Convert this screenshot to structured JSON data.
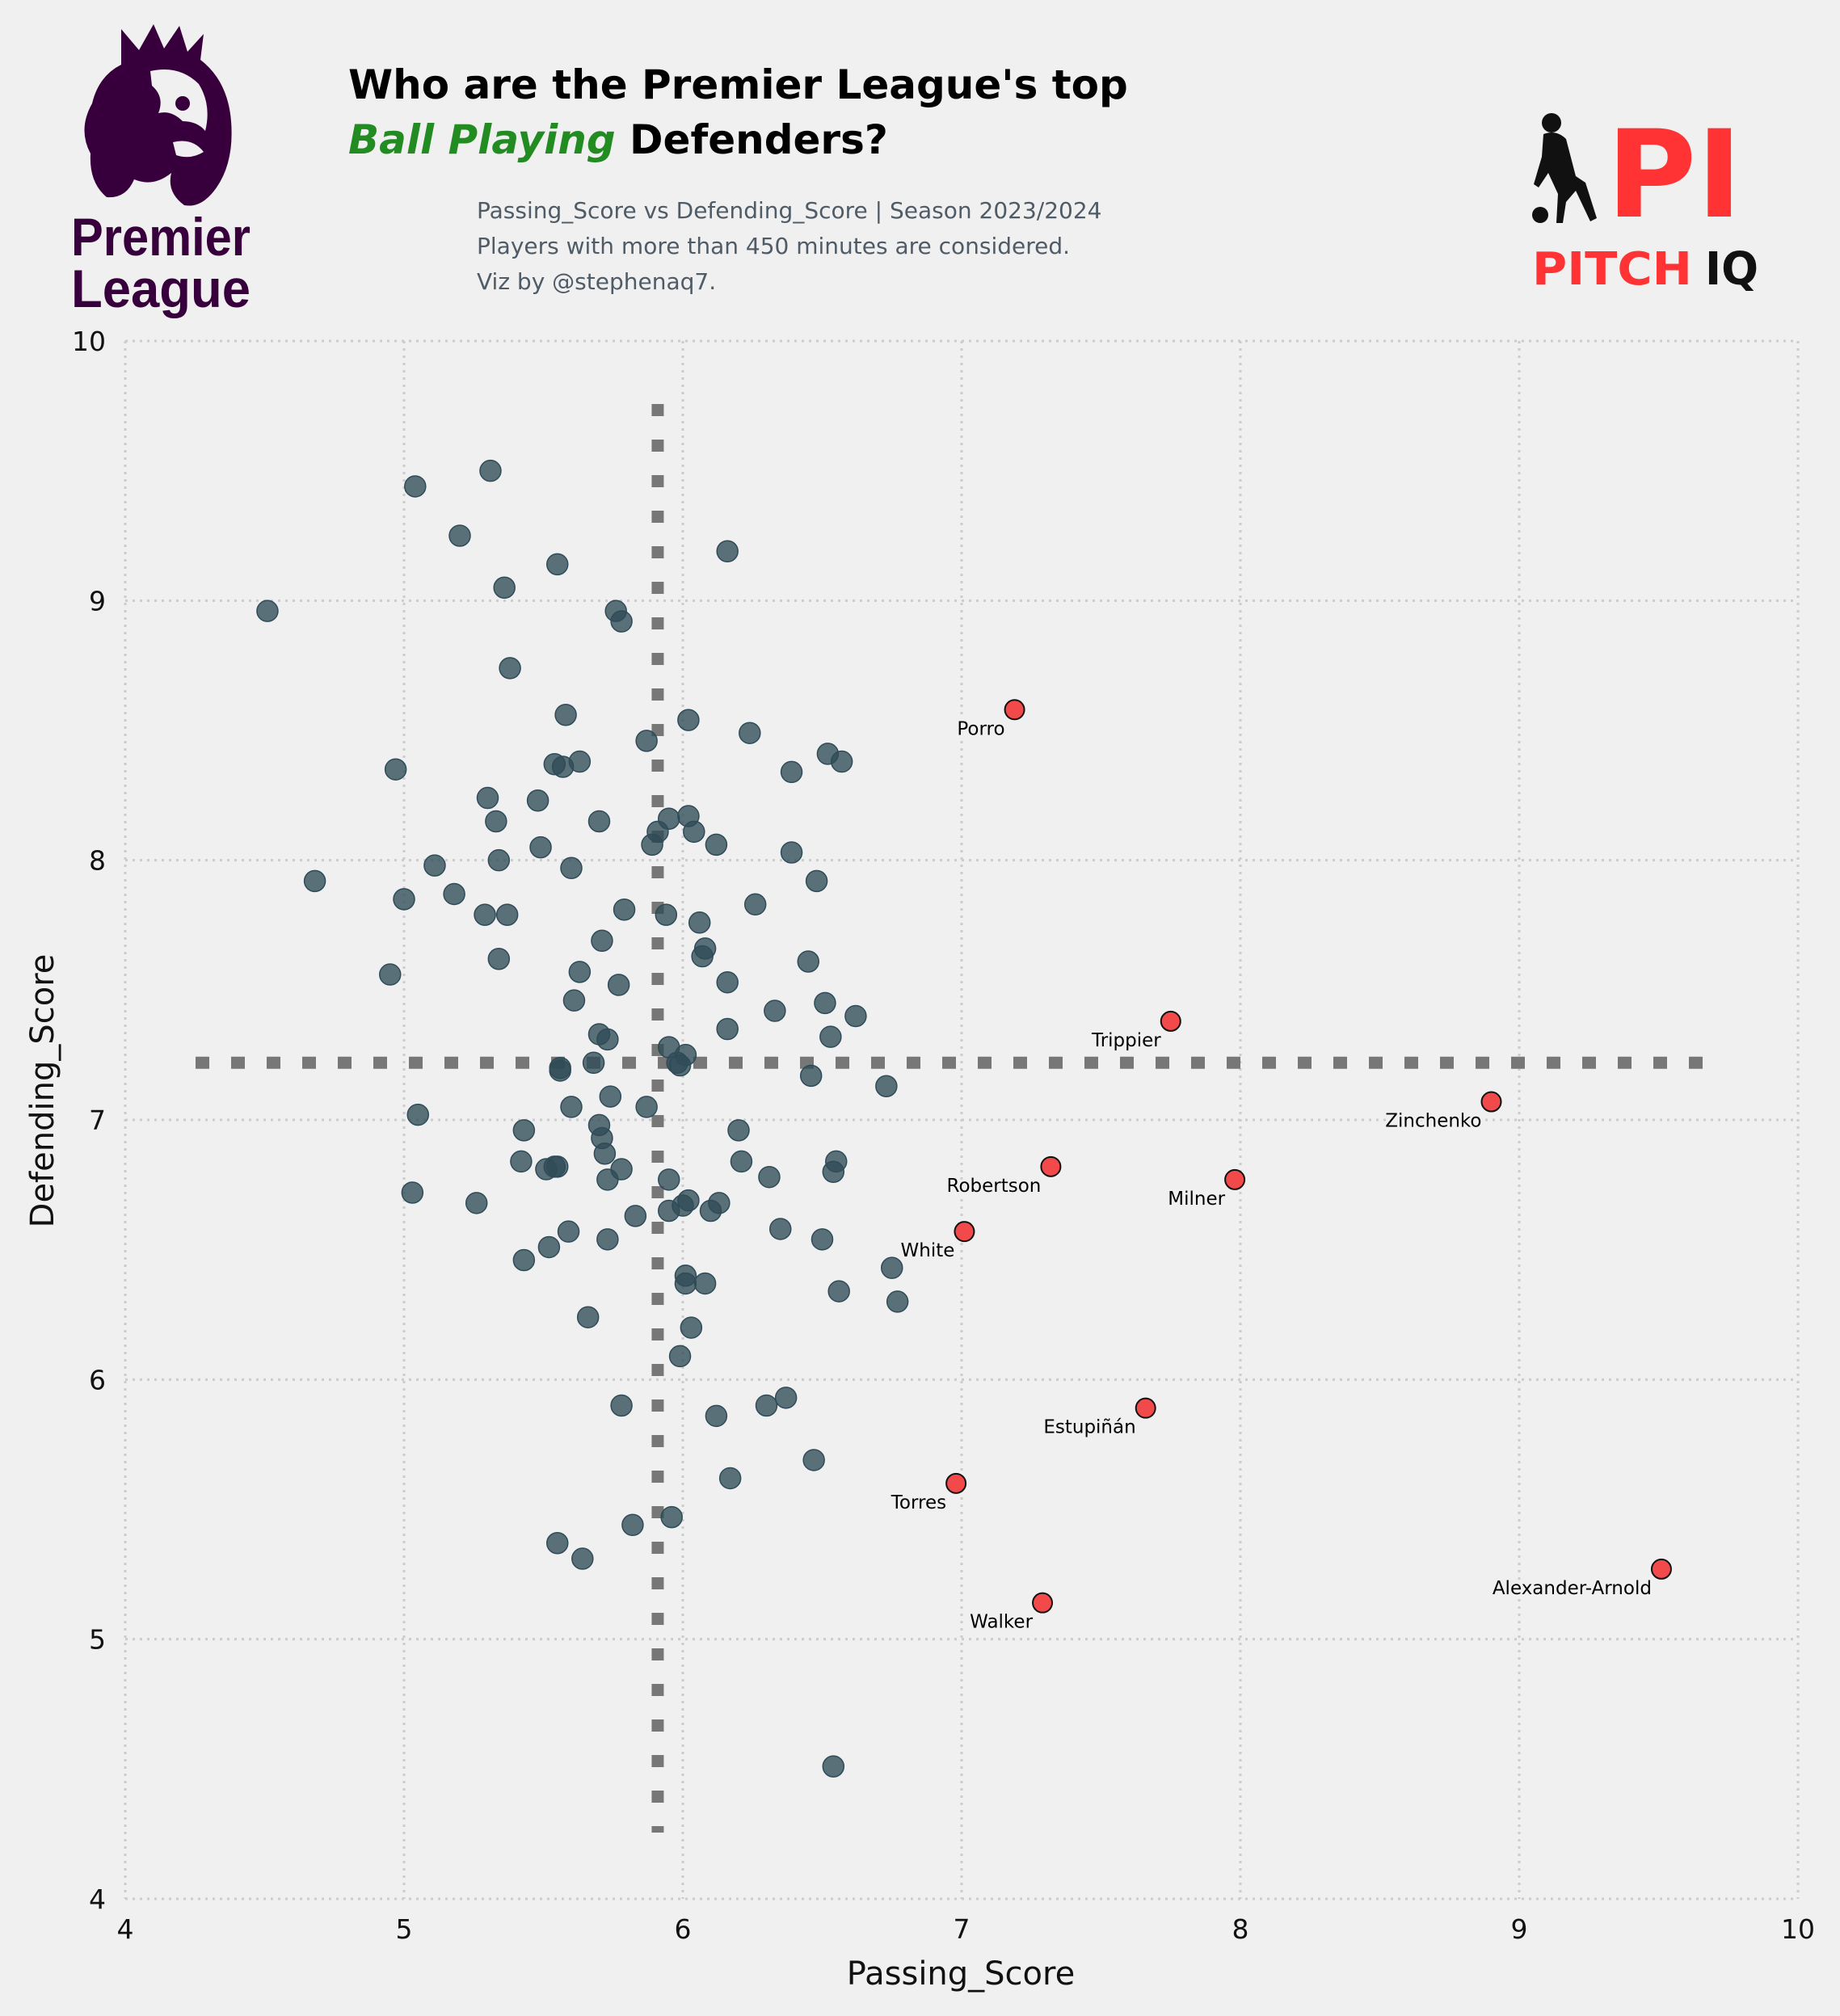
{
  "header": {
    "title_line1": "Who are the Premier League's top",
    "title_highlight": "Ball Playing",
    "title_rest": " Defenders?",
    "subtitle_lines": [
      "Passing_Score vs Defending_Score | Season 2023/2024",
      "Players with more than 450 minutes are considered.",
      "Viz by @stephenaq7."
    ]
  },
  "logos": {
    "left": {
      "line1": "Premier",
      "line2": "League",
      "color": "#37003c"
    },
    "right": {
      "mark": "PI",
      "word1": "PITCH",
      "word2": "IQ",
      "red": "#ff3333",
      "dark": "#111111"
    }
  },
  "colors": {
    "background": "#f0f0f0",
    "point": "#2f4b57",
    "highlight": "#f24a4a",
    "highlight_title": "#228b22",
    "grid": "#cccccc",
    "median_line": "#777777"
  },
  "chart_data": {
    "type": "scatter",
    "xlabel": "Passing_Score",
    "ylabel": "Defending_Score",
    "xlim": [
      4,
      10
    ],
    "ylim": [
      4,
      10
    ],
    "xticks": [
      "4",
      "5",
      "6",
      "7",
      "8",
      "9",
      "10"
    ],
    "yticks": [
      "4",
      "5",
      "6",
      "7",
      "8",
      "9",
      "10"
    ],
    "grid": true,
    "reference_lines": {
      "x": 5.91,
      "y": 7.22
    },
    "highlighted": [
      {
        "name": "Porro",
        "x": 7.19,
        "y": 8.58
      },
      {
        "name": "Trippier",
        "x": 7.75,
        "y": 7.38
      },
      {
        "name": "Zinchenko",
        "x": 8.9,
        "y": 7.07
      },
      {
        "name": "Robertson",
        "x": 7.32,
        "y": 6.82
      },
      {
        "name": "Milner",
        "x": 7.98,
        "y": 6.77
      },
      {
        "name": "White",
        "x": 7.01,
        "y": 6.57
      },
      {
        "name": "Estupiñán",
        "x": 7.66,
        "y": 5.89
      },
      {
        "name": "Torres",
        "x": 6.98,
        "y": 5.6
      },
      {
        "name": "Alexander-Arnold",
        "x": 9.51,
        "y": 5.27
      },
      {
        "name": "Walker",
        "x": 7.29,
        "y": 5.14
      }
    ],
    "others": [
      [
        4.51,
        8.96
      ],
      [
        5.04,
        9.44
      ],
      [
        5.31,
        9.5
      ],
      [
        5.2,
        9.25
      ],
      [
        5.55,
        9.14
      ],
      [
        5.36,
        9.05
      ],
      [
        6.16,
        9.19
      ],
      [
        5.76,
        8.96
      ],
      [
        5.78,
        8.92
      ],
      [
        5.38,
        8.74
      ],
      [
        4.68,
        7.92
      ],
      [
        4.97,
        8.35
      ],
      [
        5.58,
        8.56
      ],
      [
        5.3,
        8.24
      ],
      [
        5.33,
        8.15
      ],
      [
        5.48,
        8.23
      ],
      [
        5.54,
        8.37
      ],
      [
        5.57,
        8.36
      ],
      [
        5.63,
        8.38
      ],
      [
        5.7,
        8.15
      ],
      [
        5.49,
        8.05
      ],
      [
        5.34,
        8.0
      ],
      [
        5.11,
        7.98
      ],
      [
        5.0,
        7.85
      ],
      [
        5.18,
        7.87
      ],
      [
        5.29,
        7.79
      ],
      [
        5.37,
        7.79
      ],
      [
        5.6,
        7.97
      ],
      [
        5.79,
        7.81
      ],
      [
        5.71,
        7.69
      ],
      [
        4.95,
        7.56
      ],
      [
        5.34,
        7.62
      ],
      [
        5.63,
        7.57
      ],
      [
        5.61,
        7.46
      ],
      [
        5.77,
        7.52
      ],
      [
        5.7,
        7.33
      ],
      [
        5.73,
        7.31
      ],
      [
        5.68,
        7.22
      ],
      [
        5.56,
        7.2
      ],
      [
        5.56,
        7.19
      ],
      [
        5.74,
        7.09
      ],
      [
        5.6,
        7.05
      ],
      [
        5.87,
        8.46
      ],
      [
        6.02,
        8.54
      ],
      [
        6.24,
        8.49
      ],
      [
        6.39,
        8.34
      ],
      [
        6.52,
        8.41
      ],
      [
        6.57,
        8.38
      ],
      [
        5.89,
        8.06
      ],
      [
        5.91,
        8.11
      ],
      [
        5.95,
        8.16
      ],
      [
        6.02,
        8.17
      ],
      [
        6.04,
        8.11
      ],
      [
        6.12,
        8.06
      ],
      [
        6.39,
        8.03
      ],
      [
        6.48,
        7.92
      ],
      [
        5.94,
        7.79
      ],
      [
        6.06,
        7.76
      ],
      [
        6.26,
        7.83
      ],
      [
        6.07,
        7.63
      ],
      [
        6.08,
        7.66
      ],
      [
        6.16,
        7.53
      ],
      [
        6.45,
        7.61
      ],
      [
        6.51,
        7.45
      ],
      [
        6.62,
        7.4
      ],
      [
        6.16,
        7.35
      ],
      [
        6.33,
        7.42
      ],
      [
        6.53,
        7.32
      ],
      [
        5.95,
        7.28
      ],
      [
        6.01,
        7.25
      ],
      [
        5.98,
        7.22
      ],
      [
        5.99,
        7.21
      ],
      [
        6.46,
        7.17
      ],
      [
        6.73,
        7.13
      ],
      [
        5.87,
        7.05
      ],
      [
        5.05,
        7.02
      ],
      [
        5.7,
        6.98
      ],
      [
        5.71,
        6.93
      ],
      [
        5.72,
        6.87
      ],
      [
        5.43,
        6.96
      ],
      [
        5.42,
        6.84
      ],
      [
        5.55,
        6.82
      ],
      [
        5.54,
        6.82
      ],
      [
        5.51,
        6.81
      ],
      [
        5.78,
        6.81
      ],
      [
        5.73,
        6.77
      ],
      [
        5.03,
        6.72
      ],
      [
        5.26,
        6.68
      ],
      [
        5.59,
        6.57
      ],
      [
        5.73,
        6.54
      ],
      [
        5.52,
        6.51
      ],
      [
        5.43,
        6.46
      ],
      [
        5.83,
        6.63
      ],
      [
        5.95,
        6.77
      ],
      [
        5.95,
        6.65
      ],
      [
        6.0,
        6.67
      ],
      [
        6.02,
        6.69
      ],
      [
        6.1,
        6.65
      ],
      [
        6.13,
        6.68
      ],
      [
        6.2,
        6.96
      ],
      [
        6.21,
        6.84
      ],
      [
        6.31,
        6.78
      ],
      [
        6.35,
        6.58
      ],
      [
        6.55,
        6.84
      ],
      [
        6.54,
        6.8
      ],
      [
        6.5,
        6.54
      ],
      [
        6.75,
        6.43
      ],
      [
        6.77,
        6.3
      ],
      [
        6.56,
        6.34
      ],
      [
        6.01,
        6.4
      ],
      [
        6.01,
        6.37
      ],
      [
        6.08,
        6.37
      ],
      [
        6.03,
        6.2
      ],
      [
        5.66,
        6.24
      ],
      [
        5.99,
        6.09
      ],
      [
        5.78,
        5.9
      ],
      [
        6.12,
        5.86
      ],
      [
        6.3,
        5.9
      ],
      [
        6.37,
        5.93
      ],
      [
        6.47,
        5.69
      ],
      [
        6.17,
        5.62
      ],
      [
        5.82,
        5.44
      ],
      [
        5.96,
        5.47
      ],
      [
        5.55,
        5.37
      ],
      [
        5.64,
        5.31
      ],
      [
        6.54,
        4.51
      ]
    ]
  }
}
